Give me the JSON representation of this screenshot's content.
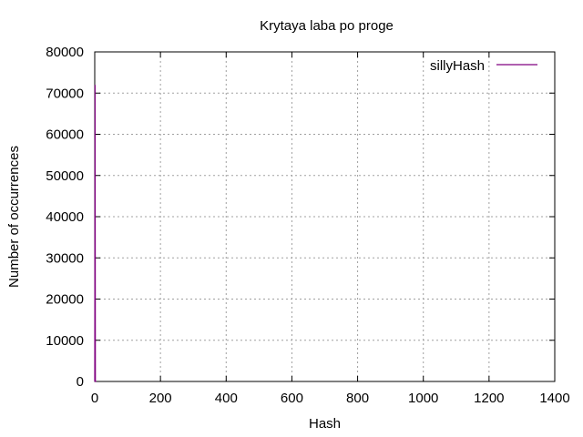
{
  "chart_data": {
    "type": "line",
    "title": "Krytaya laba po proge",
    "xlabel": "Hash",
    "ylabel": "Number of occurrences",
    "xlim": [
      0,
      1400
    ],
    "ylim": [
      0,
      80000
    ],
    "x_ticks": [
      0,
      200,
      400,
      600,
      800,
      1000,
      1200,
      1400
    ],
    "y_ticks": [
      0,
      10000,
      20000,
      30000,
      40000,
      50000,
      60000,
      70000,
      80000
    ],
    "grid": true,
    "legend_position": "top-right",
    "series": [
      {
        "name": "sillyHash",
        "color": "#800080",
        "x": [
          0,
          1,
          2,
          3,
          4,
          5
        ],
        "values": [
          0,
          72000,
          0,
          0,
          0,
          0
        ]
      }
    ]
  }
}
